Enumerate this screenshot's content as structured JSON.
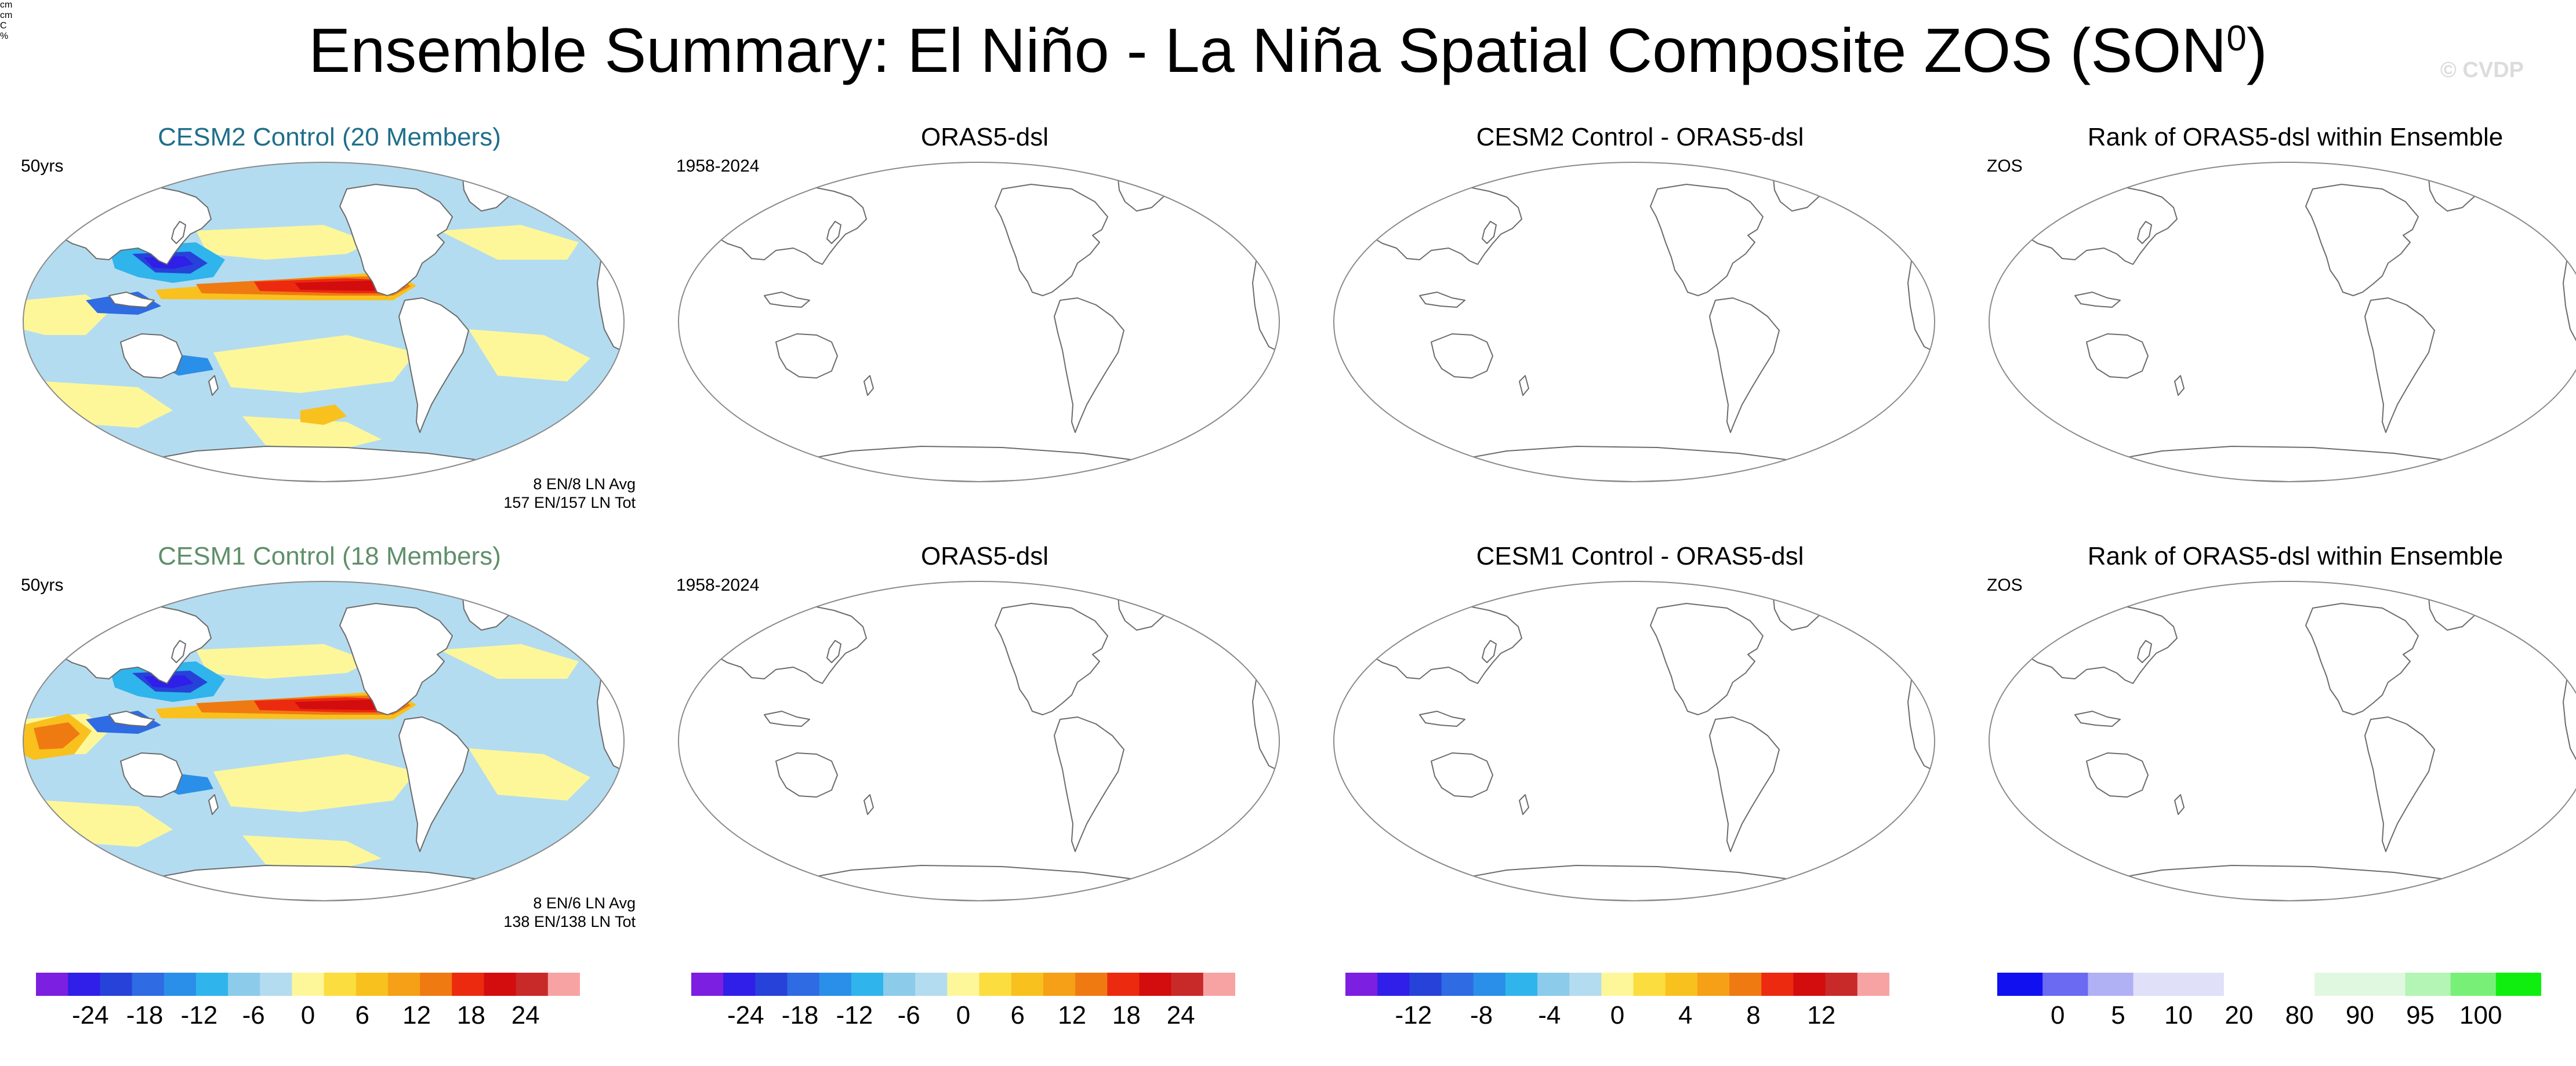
{
  "title": "Ensemble Summary: El Niño - La Niña Spatial Composite ZOS (SON",
  "title_sup": "0",
  "title_close": ")",
  "copyright": "© CVDP",
  "rows": [
    {
      "panels": [
        {
          "title": "CESM2 Control (20 Members)",
          "title_color": "#1f6f8b",
          "left_label": "50yrs",
          "filled": true,
          "variant": 1,
          "note1": "8 EN/8 LN Avg",
          "note2": "157 EN/157 LN Tot"
        },
        {
          "title": "ORAS5-dsl",
          "title_color": "#000000",
          "left_label": "1958-2024",
          "filled": false
        },
        {
          "title": "CESM2 Control - ORAS5-dsl",
          "title_color": "#000000",
          "left_label": "",
          "filled": false
        },
        {
          "title": "Rank of ORAS5-dsl within Ensemble",
          "title_color": "#000000",
          "left_label": "ZOS",
          "filled": false
        }
      ]
    },
    {
      "panels": [
        {
          "title": "CESM1 Control (18 Members)",
          "title_color": "#5f8f6a",
          "left_label": "50yrs",
          "filled": true,
          "variant": 2,
          "note1": "8 EN/6 LN Avg",
          "note2": "138 EN/138 LN Tot"
        },
        {
          "title": "ORAS5-dsl",
          "title_color": "#000000",
          "left_label": "1958-2024",
          "filled": false
        },
        {
          "title": "CESM1 Control - ORAS5-dsl",
          "title_color": "#000000",
          "left_label": "",
          "filled": false
        },
        {
          "title": "Rank of ORAS5-dsl within Ensemble",
          "title_color": "#000000",
          "left_label": "ZOS",
          "filled": false
        }
      ]
    }
  ],
  "colorbars": [
    {
      "colors": [
        "#7d1fe0",
        "#2f1fe8",
        "#2742d8",
        "#2f6be2",
        "#2a8fe8",
        "#2fb4ec",
        "#8ccbea",
        "#b4dcf0",
        "#fdf79a",
        "#fbdd3f",
        "#f9c11e",
        "#f5a017",
        "#f07a12",
        "#ec2a10",
        "#d30d0d",
        "#c82a2a",
        "#f7a3a3"
      ],
      "ticks": [
        "-24",
        "-18",
        "-12",
        "-6",
        "0",
        "6",
        "12",
        "18",
        "24"
      ],
      "unit": "cm"
    },
    {
      "colors": [
        "#7d1fe0",
        "#2f1fe8",
        "#2742d8",
        "#2f6be2",
        "#2a8fe8",
        "#2fb4ec",
        "#8ccbea",
        "#b4dcf0",
        "#fdf79a",
        "#fbdd3f",
        "#f9c11e",
        "#f5a017",
        "#f07a12",
        "#ec2a10",
        "#d30d0d",
        "#c82a2a",
        "#f7a3a3"
      ],
      "ticks": [
        "-24",
        "-18",
        "-12",
        "-6",
        "0",
        "6",
        "12",
        "18",
        "24"
      ],
      "unit": "cm"
    },
    {
      "colors": [
        "#7d1fe0",
        "#2f1fe8",
        "#2742d8",
        "#2f6be2",
        "#2a8fe8",
        "#2fb4ec",
        "#8ccbea",
        "#b4dcf0",
        "#fdf79a",
        "#fbdd3f",
        "#f9c11e",
        "#f5a017",
        "#f07a12",
        "#ec2a10",
        "#d30d0d",
        "#c82a2a",
        "#f7a3a3"
      ],
      "ticks": [
        "-12",
        "-8",
        "-4",
        "0",
        "4",
        "8",
        "12"
      ],
      "unit": "C"
    },
    {
      "colors": [
        "#1010f0",
        "#6a6af2",
        "#b0b0f4",
        "#e0e0f8",
        "#e0e0f8",
        "#ffffff",
        "#ffffff",
        "#e0f8e0",
        "#e0f8e0",
        "#b4f4b4",
        "#78f078",
        "#10ee10"
      ],
      "ticks": [
        "0",
        "5",
        "10",
        "20",
        "80",
        "90",
        "95",
        "100"
      ],
      "unit": "%"
    }
  ]
}
